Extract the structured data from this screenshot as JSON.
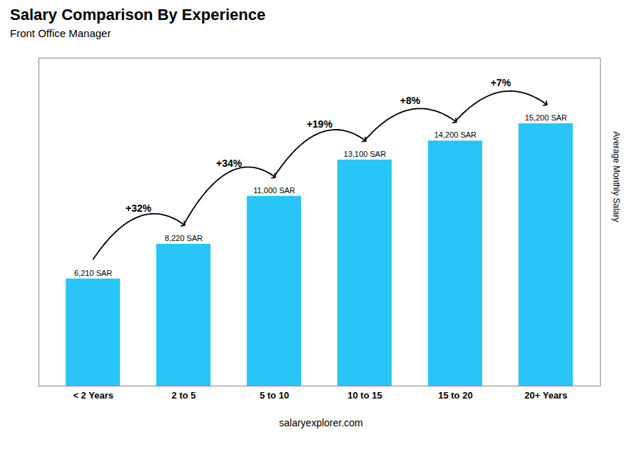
{
  "chart_data": {
    "type": "bar",
    "title": "Salary Comparison By Experience",
    "subtitle": "Front Office Manager",
    "ylabel": "Average Monthly Salary",
    "caption": "salaryexplorer.com",
    "categories": [
      "< 2 Years",
      "2 to 5",
      "5 to 10",
      "10 to 15",
      "15 to 20",
      "20+ Years"
    ],
    "values": [
      6210,
      8220,
      11000,
      13100,
      14200,
      15200
    ],
    "value_labels": [
      "6,210 SAR",
      "8,220 SAR",
      "11,000 SAR",
      "13,100 SAR",
      "14,200 SAR",
      "15,200 SAR"
    ],
    "data_labels": true,
    "annotations": [
      "+32%",
      "+34%",
      "+19%",
      "+8%",
      "+7%"
    ],
    "color": "#29c5f6",
    "ylim": [
      0,
      19000
    ],
    "tick_labels": "x",
    "grid": false
  }
}
